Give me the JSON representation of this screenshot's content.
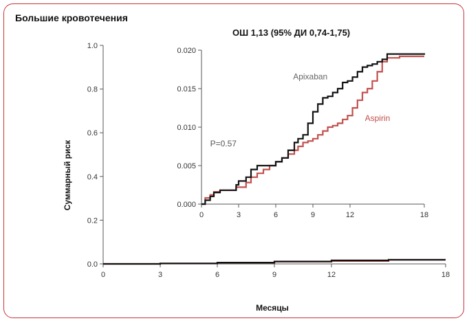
{
  "panel_title": "Большие кровотечения",
  "colors": {
    "apixaban": "#111111",
    "aspirin": "#c0504d",
    "axis": "#555555"
  },
  "chart_data": [
    {
      "type": "line",
      "role": "main",
      "xlabel": "Месяцы",
      "ylabel": "Суммарный риск",
      "xlim": [
        0,
        18
      ],
      "ylim": [
        0,
        1.0
      ],
      "xticks": [
        0,
        3,
        6,
        9,
        12,
        18
      ],
      "yticks": [
        0,
        0.2,
        0.4,
        0.6,
        0.8,
        1.0
      ],
      "xtick_labels": [
        "0",
        "3",
        "6",
        "9",
        "12",
        "18"
      ],
      "ytick_labels": [
        "0.0",
        "0.2",
        "0.4",
        "0.6",
        "0.8",
        "1.0"
      ],
      "series": [
        {
          "key": "apixaban",
          "x": [
            0,
            3,
            6,
            9,
            12,
            15,
            18
          ],
          "y": [
            0,
            0.002,
            0.006,
            0.011,
            0.016,
            0.019,
            0.019
          ]
        },
        {
          "key": "aspirin",
          "x": [
            0,
            3,
            6,
            9,
            12,
            15,
            18
          ],
          "y": [
            0,
            0.002,
            0.005,
            0.01,
            0.013,
            0.019,
            0.019
          ]
        }
      ]
    },
    {
      "type": "line",
      "role": "inset",
      "title": "ОШ 1,13 (95% ДИ 0,74-1,75)",
      "xlim": [
        0,
        18
      ],
      "ylim": [
        0,
        0.02
      ],
      "xticks": [
        0,
        3,
        6,
        9,
        12,
        18
      ],
      "yticks": [
        0,
        0.005,
        0.01,
        0.015,
        0.02
      ],
      "xtick_labels": [
        "0",
        "3",
        "6",
        "9",
        "12",
        "18"
      ],
      "ytick_labels": [
        "0.000",
        "0.005",
        "0.010",
        "0.015",
        "0.020"
      ],
      "annotation": "P=0.57",
      "series": [
        {
          "name": "Apixaban",
          "key": "apixaban",
          "x": [
            0,
            0.3,
            0.7,
            1.0,
            1.5,
            2.0,
            2.8,
            3.0,
            3.6,
            4.0,
            4.5,
            5.0,
            5.5,
            6.0,
            6.5,
            7.0,
            7.5,
            7.8,
            8.2,
            8.6,
            9.0,
            9.4,
            9.8,
            10.2,
            10.6,
            11.0,
            11.4,
            11.8,
            12.2,
            12.6,
            13.0,
            13.4,
            13.8,
            14.2,
            14.6,
            15.0,
            16.0,
            17.0,
            18.0
          ],
          "y": [
            0,
            0.0005,
            0.001,
            0.0015,
            0.0018,
            0.0018,
            0.0025,
            0.003,
            0.0035,
            0.0045,
            0.005,
            0.005,
            0.005,
            0.0055,
            0.006,
            0.007,
            0.008,
            0.0085,
            0.009,
            0.0105,
            0.012,
            0.013,
            0.0138,
            0.014,
            0.0145,
            0.015,
            0.0158,
            0.016,
            0.0165,
            0.0172,
            0.0178,
            0.018,
            0.0182,
            0.0185,
            0.0188,
            0.0195,
            0.0195,
            0.0195,
            0.0194
          ]
        },
        {
          "name": "Aspirin",
          "key": "aspirin",
          "x": [
            0,
            0.3,
            0.7,
            1.0,
            1.5,
            2.0,
            2.8,
            3.0,
            3.6,
            4.0,
            4.5,
            5.0,
            5.5,
            6.0,
            6.5,
            7.0,
            7.5,
            7.8,
            8.2,
            8.6,
            9.0,
            9.4,
            9.8,
            10.2,
            10.6,
            11.0,
            11.4,
            11.8,
            12.2,
            12.6,
            13.0,
            13.4,
            13.8,
            14.2,
            14.6,
            15.0,
            16.0,
            17.0,
            18.0
          ],
          "y": [
            0,
            0.0008,
            0.0012,
            0.0016,
            0.0018,
            0.0018,
            0.0022,
            0.0022,
            0.0028,
            0.0035,
            0.004,
            0.0045,
            0.005,
            0.0055,
            0.006,
            0.0065,
            0.007,
            0.0075,
            0.008,
            0.0082,
            0.0085,
            0.009,
            0.0095,
            0.01,
            0.0102,
            0.0105,
            0.011,
            0.0115,
            0.0125,
            0.0135,
            0.0145,
            0.015,
            0.016,
            0.0172,
            0.0185,
            0.019,
            0.0192,
            0.0192,
            0.0192
          ]
        }
      ]
    }
  ]
}
